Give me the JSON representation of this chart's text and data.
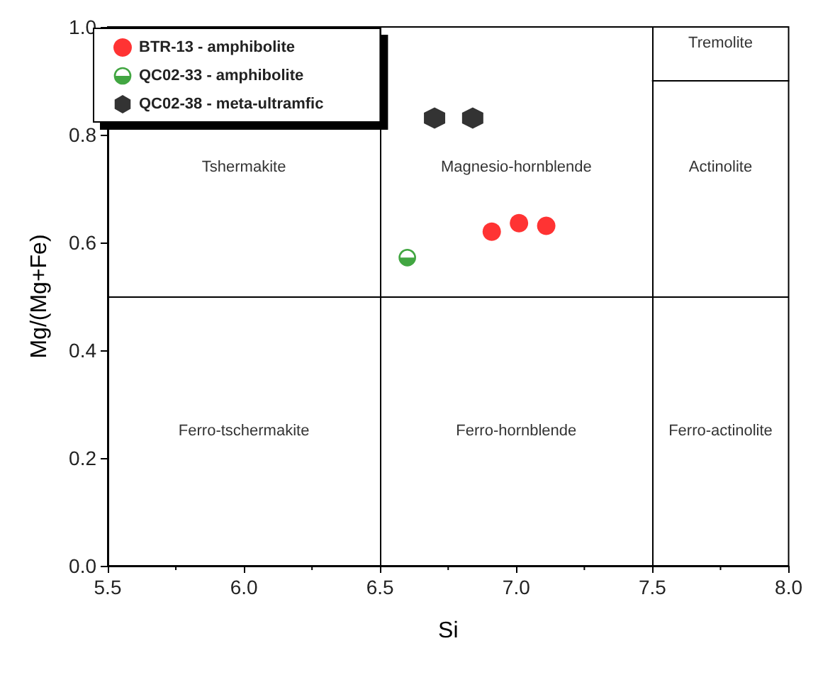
{
  "chart_data": {
    "type": "scatter",
    "xlabel": "Si",
    "ylabel": "Mg/(Mg+Fe)",
    "xlim": [
      5.5,
      8.0
    ],
    "xticks": [
      5.5,
      {
        "value": 6,
        "label": "6.0"
      },
      6.5,
      {
        "value": 7,
        "label": "7.0"
      },
      7.5,
      {
        "value": 8,
        "label": "8.0"
      }
    ],
    "ylim": [
      0,
      1
    ],
    "yticks": [
      {
        "value": 0,
        "label": "0.0"
      },
      0.2,
      0.4,
      0.6,
      0.8,
      {
        "value": 1,
        "label": "1.0"
      }
    ],
    "grid": false,
    "legend": "top left",
    "series": [
      {
        "name": "BTR-13 - amphibolite",
        "color": "#ff0000",
        "marker": "circle",
        "x": [
          6.91,
          7.01,
          7.11
        ],
        "values": [
          0.62,
          0.636,
          0.631
        ]
      },
      {
        "name": "QC02-33 - amphibolite",
        "color": "#139113",
        "x": [
          6.6
        ],
        "values": [
          0.572
        ]
      },
      {
        "name": "QC02-38 - meta-ultramfic",
        "color": "#000000",
        "x": [
          6.7,
          6.84
        ],
        "values": [
          0.831,
          0.831
        ]
      },
      {
        "type": "line",
        "color": "#000000",
        "marker": "none",
        "x": [
          7.5,
          8.0
        ],
        "values": [
          0.9,
          0.9
        ]
      }
    ],
    "ref_lines": [
      {
        "axis": "x",
        "value": 6.5,
        "color": "#000000"
      },
      {
        "axis": "x",
        "value": 7.5,
        "color": "#000000"
      },
      {
        "axis": "y",
        "value": 0.5,
        "color": "#000000"
      }
    ],
    "annotations": [
      "Tshermakite",
      "Magnesio-hornblende",
      "Actinolite",
      "Tremolite",
      "Ferro-tschermakite",
      "Ferro-hornblende",
      "Ferro-actinolite"
    ]
  }
}
